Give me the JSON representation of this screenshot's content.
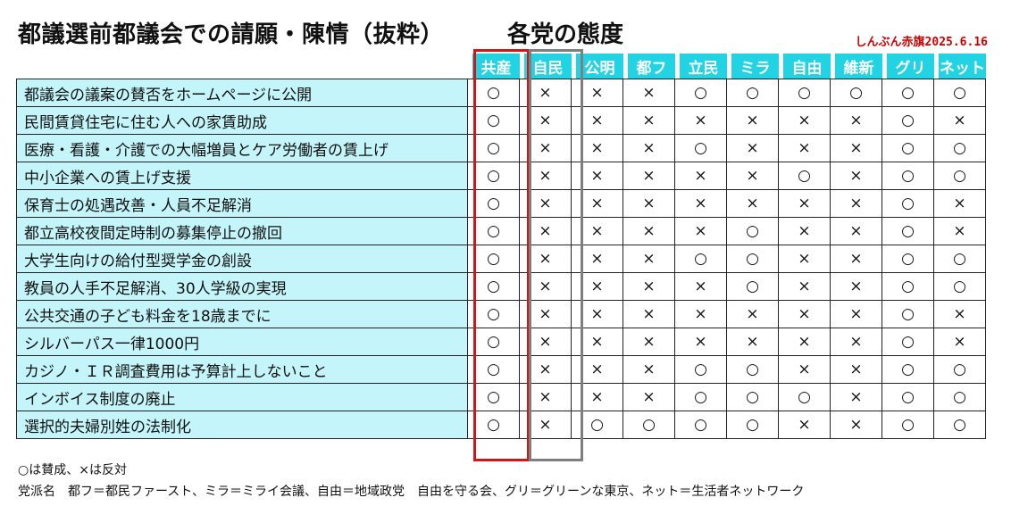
{
  "header": {
    "title": "都議選前都議会での請願・陳情（抜粋）",
    "subtitle": "各党の態度",
    "source": "しんぶん赤旗2025.6.16"
  },
  "parties": [
    "共産",
    "自民",
    "公明",
    "都フ",
    "立民",
    "ミラ",
    "自由",
    "維新",
    "グリ",
    "ネット"
  ],
  "rows": [
    {
      "item": "都議会の議案の賛否をホームページに公開",
      "marks": [
        "○",
        "×",
        "×",
        "×",
        "○",
        "○",
        "○",
        "○",
        "○",
        "○"
      ]
    },
    {
      "item": "民間賃貸住宅に住む人への家賃助成",
      "marks": [
        "○",
        "×",
        "×",
        "×",
        "×",
        "×",
        "×",
        "×",
        "○",
        "×"
      ]
    },
    {
      "item": "医療・看護・介護での大幅増員とケア労働者の賃上げ",
      "marks": [
        "○",
        "×",
        "×",
        "×",
        "○",
        "×",
        "×",
        "×",
        "○",
        "○"
      ]
    },
    {
      "item": "中小企業への賃上げ支援",
      "marks": [
        "○",
        "×",
        "×",
        "×",
        "×",
        "×",
        "○",
        "×",
        "○",
        "○"
      ]
    },
    {
      "item": "保育士の処遇改善・人員不足解消",
      "marks": [
        "○",
        "×",
        "×",
        "×",
        "×",
        "×",
        "×",
        "×",
        "○",
        "×"
      ]
    },
    {
      "item": "都立高校夜間定時制の募集停止の撤回",
      "marks": [
        "○",
        "×",
        "×",
        "×",
        "×",
        "○",
        "×",
        "×",
        "○",
        "×"
      ]
    },
    {
      "item": "大学生向けの給付型奨学金の創設",
      "marks": [
        "○",
        "×",
        "×",
        "×",
        "○",
        "○",
        "×",
        "×",
        "○",
        "○"
      ]
    },
    {
      "item": "教員の人手不足解消、30人学級の実現",
      "marks": [
        "○",
        "×",
        "×",
        "×",
        "×",
        "○",
        "×",
        "×",
        "○",
        "○"
      ]
    },
    {
      "item": "公共交通の子ども料金を18歳までに",
      "marks": [
        "○",
        "×",
        "×",
        "×",
        "×",
        "×",
        "×",
        "×",
        "○",
        "×"
      ]
    },
    {
      "item": "シルバーパス一律1000円",
      "marks": [
        "○",
        "×",
        "×",
        "×",
        "×",
        "×",
        "×",
        "×",
        "○",
        "×"
      ]
    },
    {
      "item": "カジノ・ＩＲ調査費用は予算計上しないこと",
      "marks": [
        "○",
        "×",
        "×",
        "×",
        "○",
        "○",
        "×",
        "×",
        "○",
        "○"
      ]
    },
    {
      "item": "インボイス制度の廃止",
      "marks": [
        "○",
        "×",
        "×",
        "×",
        "○",
        "○",
        "○",
        "×",
        "○",
        "○"
      ]
    },
    {
      "item": "選択的夫婦別姓の法制化",
      "marks": [
        "○",
        "×",
        "○",
        "○",
        "○",
        "○",
        "×",
        "×",
        "○",
        "○"
      ]
    }
  ],
  "footer": {
    "legend": "○は賛成、×は反対",
    "abbreviations": "党派名　都フ＝都民ファースト、ミラ＝ミライ会議、自由＝地域政党　自由を守る会、グリ＝グリーンな東京、ネット＝生活者ネットワーク"
  },
  "colors": {
    "header_bg": "#22d3e4",
    "row_bg": "#c4f5fa",
    "highlight_jcp": "#d01616",
    "highlight_ldp": "#7f7f7f",
    "source_text": "#cc0000"
  }
}
